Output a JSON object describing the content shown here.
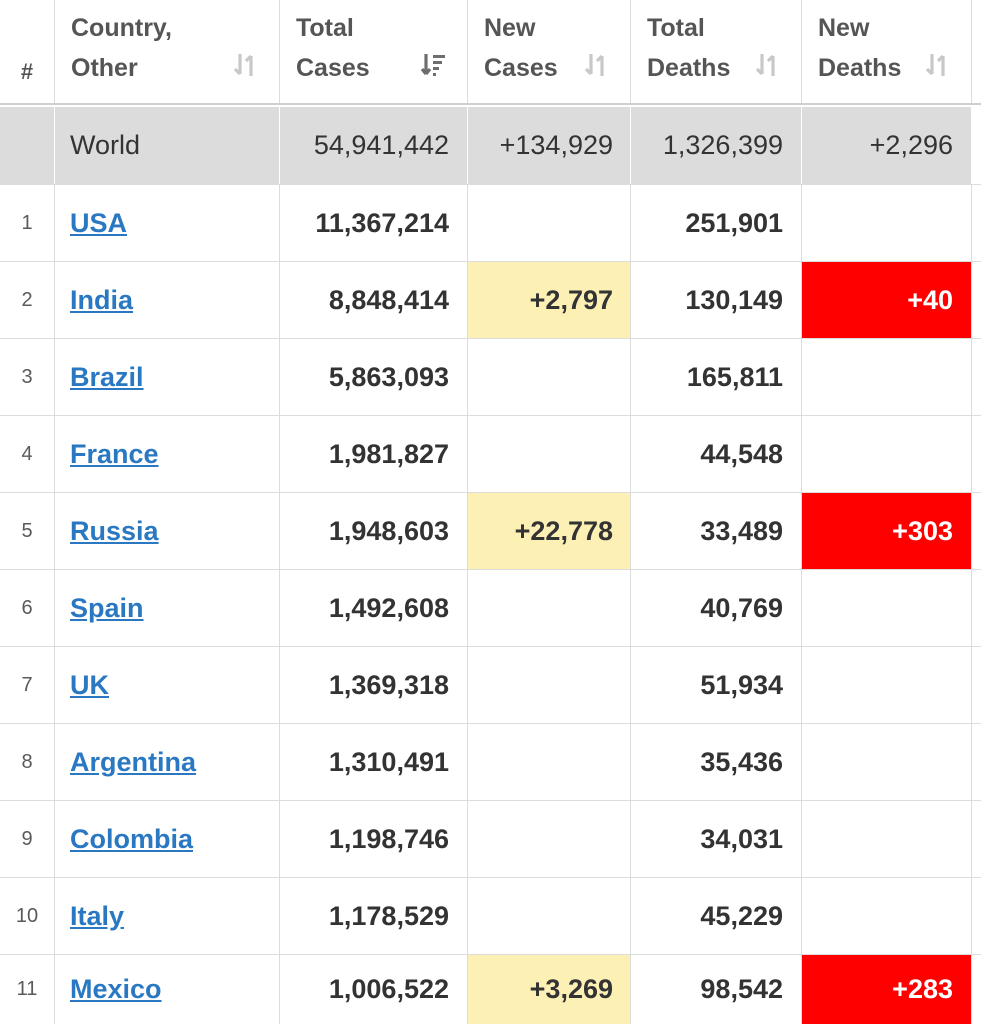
{
  "headers": {
    "num": "#",
    "country_line1": "Country,",
    "country_line2": "Other",
    "total_cases_line1": "Total",
    "total_cases_line2": "Cases",
    "new_cases_line1": "New",
    "new_cases_line2": "Cases",
    "total_deaths_line1": "Total",
    "total_deaths_line2": "Deaths",
    "new_deaths_line1": "New",
    "new_deaths_line2": "Deaths"
  },
  "world": {
    "label": "World",
    "total_cases": "54,941,442",
    "new_cases": "+134,929",
    "total_deaths": "1,326,399",
    "new_deaths": "+2,296"
  },
  "rows": [
    {
      "num": "1",
      "country": "USA",
      "total_cases": "11,367,214",
      "new_cases": "",
      "total_deaths": "251,901",
      "new_deaths": ""
    },
    {
      "num": "2",
      "country": "India",
      "total_cases": "8,848,414",
      "new_cases": "+2,797",
      "total_deaths": "130,149",
      "new_deaths": "+40"
    },
    {
      "num": "3",
      "country": "Brazil",
      "total_cases": "5,863,093",
      "new_cases": "",
      "total_deaths": "165,811",
      "new_deaths": ""
    },
    {
      "num": "4",
      "country": "France",
      "total_cases": "1,981,827",
      "new_cases": "",
      "total_deaths": "44,548",
      "new_deaths": ""
    },
    {
      "num": "5",
      "country": "Russia",
      "total_cases": "1,948,603",
      "new_cases": "+22,778",
      "total_deaths": "33,489",
      "new_deaths": "+303"
    },
    {
      "num": "6",
      "country": "Spain",
      "total_cases": "1,492,608",
      "new_cases": "",
      "total_deaths": "40,769",
      "new_deaths": ""
    },
    {
      "num": "7",
      "country": "UK",
      "total_cases": "1,369,318",
      "new_cases": "",
      "total_deaths": "51,934",
      "new_deaths": ""
    },
    {
      "num": "8",
      "country": "Argentina",
      "total_cases": "1,310,491",
      "new_cases": "",
      "total_deaths": "35,436",
      "new_deaths": ""
    },
    {
      "num": "9",
      "country": "Colombia",
      "total_cases": "1,198,746",
      "new_cases": "",
      "total_deaths": "34,031",
      "new_deaths": ""
    },
    {
      "num": "10",
      "country": "Italy",
      "total_cases": "1,178,529",
      "new_cases": "",
      "total_deaths": "45,229",
      "new_deaths": ""
    },
    {
      "num": "11",
      "country": "Mexico",
      "total_cases": "1,006,522",
      "new_cases": "+3,269",
      "total_deaths": "98,542",
      "new_deaths": "+283"
    }
  ],
  "colors": {
    "link": "#2a78c2",
    "new_cases_highlight": "#fdf0b5",
    "new_deaths_highlight": "#ff0000",
    "world_row_bg": "#dcdcdc"
  },
  "icons": {
    "sort_inactive": "sort-arrows-icon",
    "sort_active": "sort-desc-icon"
  }
}
